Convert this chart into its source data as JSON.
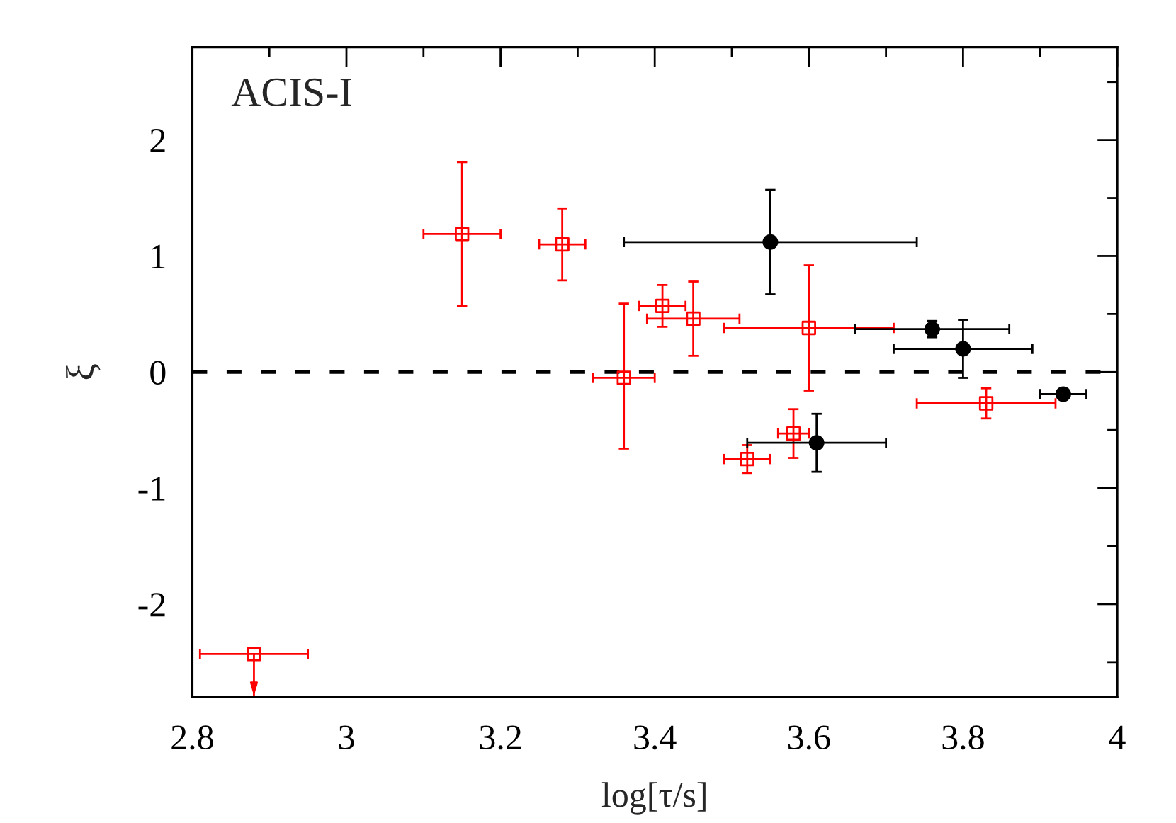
{
  "chart_data": {
    "type": "scatter",
    "xlabel": "log[τ/s]",
    "ylabel": "ξ",
    "annotations": [
      "ACIS-I"
    ],
    "xlim": [
      2.8,
      4
    ],
    "ylim": [
      -2.8,
      2.8
    ],
    "xticks": [
      2.8,
      {
        "value": 2.9,
        "label": null
      },
      3,
      {
        "value": 3.1,
        "label": null
      },
      3.2,
      {
        "value": 3.3,
        "label": null
      },
      3.4,
      {
        "value": 3.5,
        "label": null
      },
      3.6,
      {
        "value": 3.7,
        "label": null
      },
      3.8,
      {
        "value": 3.9,
        "label": null
      },
      4
    ],
    "yticks": [
      {
        "value": -2.5,
        "label": null
      },
      -2,
      {
        "value": -1.5,
        "label": null
      },
      -1,
      {
        "value": -0.5,
        "label": null
      },
      0,
      {
        "value": 0.5,
        "label": null
      },
      1,
      {
        "value": 1.5,
        "label": null
      },
      2,
      {
        "value": 2.5,
        "label": null
      }
    ],
    "grid": false,
    "legend": false,
    "ref_lines": [
      {
        "axis": "y",
        "value": 0,
        "color": "#000000",
        "line_style": "dashed"
      }
    ],
    "series": [
      {
        "color": "#ff0000",
        "marker": "square",
        "x": [
          2.88,
          3.15,
          3.28,
          3.36,
          3.41,
          3.45,
          3.52,
          3.58,
          3.6,
          3.83
        ],
        "values": [
          -2.43,
          1.19,
          1.1,
          -0.05,
          0.57,
          0.46,
          -0.75,
          -0.53,
          0.38,
          -0.27
        ],
        "errors": [
          [
            -2.79,
            -2.43
          ],
          0.62,
          0.31,
          [
            -0.66,
            0.59
          ],
          0.18,
          0.32,
          0.12,
          0.21,
          0.54,
          0.13
        ],
        "xerrors": [
          0.07,
          0.05,
          0.03,
          0.04,
          0.03,
          0.06,
          0.03,
          0.02,
          0.11,
          0.09
        ]
      },
      {
        "color": "#000000",
        "marker": "circle",
        "x": [
          3.55,
          3.61,
          3.76,
          3.8,
          3.93
        ],
        "values": [
          1.12,
          -0.61,
          0.37,
          0.2,
          -0.19
        ],
        "errors": [
          0.45,
          0.25,
          0.07,
          0.25,
          null
        ],
        "xerrors": [
          0.19,
          0.09,
          0.1,
          0.09,
          0.03
        ]
      }
    ]
  }
}
